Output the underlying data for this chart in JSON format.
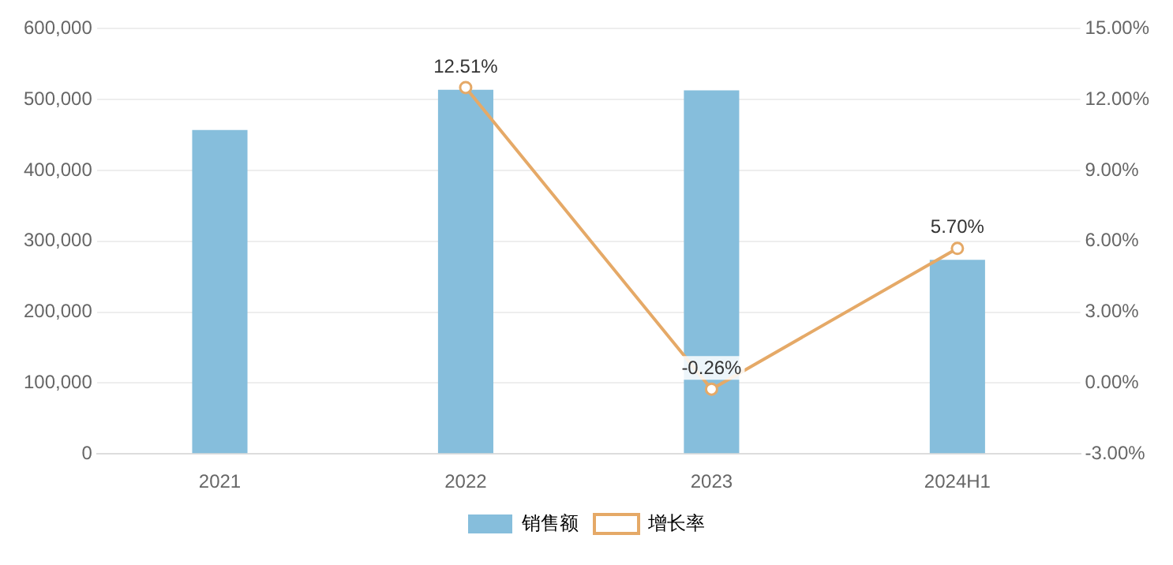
{
  "chart_data": {
    "type": "bar",
    "categories": [
      "2021",
      "2022",
      "2023",
      "2024H1"
    ],
    "series": [
      {
        "name": "销售额",
        "color": "#86bedc",
        "values": [
          457000,
          514000,
          513000,
          274000
        ]
      },
      {
        "name": "增长率",
        "type": "line",
        "axis": "y2",
        "color": "#e5a967",
        "values": [
          null,
          12.51,
          -0.26,
          5.7
        ],
        "value_labels": [
          null,
          "12.51%",
          "-0.26%",
          "5.70%"
        ],
        "marker": "circle"
      }
    ],
    "ylim": [
      0,
      600000
    ],
    "yticks": [
      {
        "value": 0,
        "label": "0"
      },
      {
        "value": 100000,
        "label": "100,000"
      },
      {
        "value": 200000,
        "label": "200,000"
      },
      {
        "value": 300000,
        "label": "300,000"
      },
      {
        "value": 400000,
        "label": "400,000"
      },
      {
        "value": 500000,
        "label": "500,000"
      },
      {
        "value": 600000,
        "label": "600,000"
      }
    ],
    "y2lim": [
      -3,
      15
    ],
    "y2ticks": [
      {
        "value": -3,
        "label": "-3.00%"
      },
      {
        "value": 0,
        "label": "0.00%"
      },
      {
        "value": 3,
        "label": "3.00%"
      },
      {
        "value": 6,
        "label": "6.00%"
      },
      {
        "value": 9,
        "label": "9.00%"
      },
      {
        "value": 12,
        "label": "12.00%"
      },
      {
        "value": 15,
        "label": "15.00%"
      }
    ],
    "grid": "y",
    "legend": "bottom"
  }
}
